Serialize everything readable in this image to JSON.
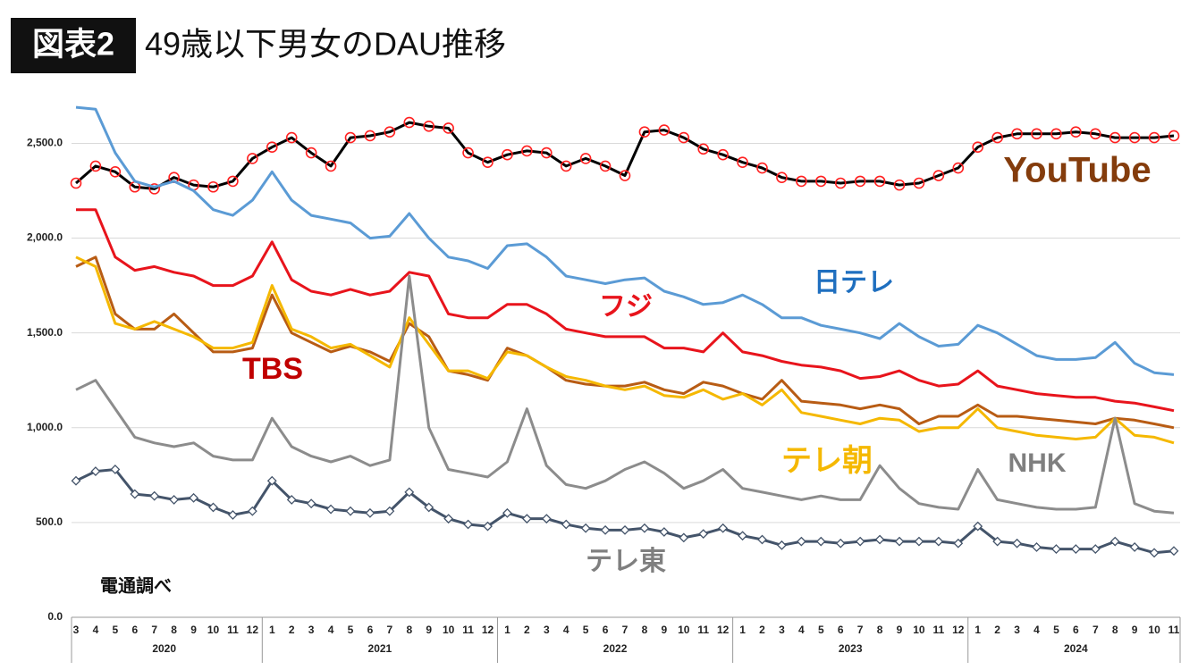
{
  "chart_data": {
    "type": "line",
    "badge": "図表2",
    "title": "49歳以下男女のDAU推移",
    "source": "電通調べ",
    "categories": [
      "3",
      "4",
      "5",
      "6",
      "7",
      "8",
      "9",
      "10",
      "11",
      "12",
      "1",
      "2",
      "3",
      "4",
      "5",
      "6",
      "7",
      "8",
      "9",
      "10",
      "11",
      "12",
      "1",
      "2",
      "3",
      "4",
      "5",
      "6",
      "7",
      "8",
      "9",
      "10",
      "11",
      "12",
      "1",
      "2",
      "3",
      "4",
      "5",
      "6",
      "7",
      "8",
      "9",
      "10",
      "11",
      "12",
      "1",
      "2",
      "3",
      "4",
      "5",
      "6",
      "7",
      "8",
      "9",
      "10",
      "11"
    ],
    "years": [
      "2020",
      "2021",
      "2022",
      "2023",
      "2024"
    ],
    "ylim": [
      0,
      2700
    ],
    "yticks": [
      {
        "value": 0,
        "label": "0.0"
      },
      {
        "value": 500,
        "label": "500.0"
      },
      {
        "value": 1000,
        "label": "1,000.0"
      },
      {
        "value": 1500,
        "label": "1,500.0"
      },
      {
        "value": 2000,
        "label": "2,000.0"
      },
      {
        "value": 2500,
        "label": "2,500.0"
      }
    ],
    "grid": true,
    "series": [
      {
        "name": "YouTube",
        "color": "#000000",
        "label_color": "#843c0c",
        "marker": "circle",
        "marker_color": "#ff2020",
        "values": [
          2290,
          2380,
          2350,
          2270,
          2260,
          2320,
          2280,
          2270,
          2300,
          2420,
          2480,
          2530,
          2450,
          2380,
          2530,
          2540,
          2560,
          2610,
          2590,
          2580,
          2450,
          2400,
          2440,
          2460,
          2450,
          2380,
          2420,
          2380,
          2330,
          2560,
          2570,
          2530,
          2470,
          2440,
          2400,
          2370,
          2320,
          2300,
          2300,
          2290,
          2300,
          2300,
          2280,
          2290,
          2330,
          2370,
          2480,
          2530,
          2550,
          2550,
          2550,
          2560,
          2550,
          2530,
          2530,
          2530,
          2540
        ]
      },
      {
        "name": "日テレ",
        "color": "#5b9bd5",
        "label_color": "#1f6fbf",
        "values": [
          2690,
          2680,
          2450,
          2300,
          2270,
          2300,
          2250,
          2150,
          2120,
          2200,
          2350,
          2200,
          2120,
          2100,
          2080,
          2000,
          2010,
          2130,
          2000,
          1900,
          1880,
          1840,
          1960,
          1970,
          1900,
          1800,
          1780,
          1760,
          1780,
          1790,
          1720,
          1690,
          1650,
          1660,
          1700,
          1650,
          1580,
          1580,
          1540,
          1520,
          1500,
          1470,
          1550,
          1480,
          1430,
          1440,
          1540,
          1500,
          1440,
          1380,
          1360,
          1360,
          1370,
          1450,
          1340,
          1290,
          1280
        ]
      },
      {
        "name": "フジ",
        "color": "#e8141c",
        "label_color": "#e8141c",
        "values": [
          2150,
          2150,
          1900,
          1830,
          1850,
          1820,
          1800,
          1750,
          1750,
          1800,
          1980,
          1780,
          1720,
          1700,
          1730,
          1700,
          1720,
          1820,
          1800,
          1600,
          1580,
          1580,
          1650,
          1650,
          1600,
          1520,
          1500,
          1480,
          1480,
          1480,
          1420,
          1420,
          1400,
          1500,
          1400,
          1380,
          1350,
          1330,
          1320,
          1300,
          1260,
          1270,
          1300,
          1250,
          1220,
          1230,
          1300,
          1220,
          1200,
          1180,
          1170,
          1160,
          1160,
          1140,
          1130,
          1110,
          1090
        ]
      },
      {
        "name": "TBS",
        "color": "#b85c14",
        "label_color": "#c00000",
        "values": [
          1850,
          1900,
          1600,
          1520,
          1520,
          1600,
          1500,
          1400,
          1400,
          1420,
          1700,
          1500,
          1450,
          1400,
          1430,
          1400,
          1350,
          1550,
          1480,
          1300,
          1280,
          1250,
          1420,
          1380,
          1320,
          1250,
          1230,
          1220,
          1220,
          1240,
          1200,
          1180,
          1240,
          1220,
          1180,
          1150,
          1250,
          1140,
          1130,
          1120,
          1100,
          1120,
          1100,
          1020,
          1060,
          1060,
          1120,
          1060,
          1060,
          1050,
          1040,
          1030,
          1020,
          1050,
          1040,
          1020,
          1000
        ]
      },
      {
        "name": "テレ朝",
        "color": "#f5b800",
        "label_color": "#f5b800",
        "values": [
          1900,
          1850,
          1550,
          1520,
          1560,
          1520,
          1480,
          1420,
          1420,
          1450,
          1750,
          1520,
          1480,
          1420,
          1440,
          1380,
          1320,
          1580,
          1440,
          1300,
          1300,
          1260,
          1400,
          1380,
          1320,
          1270,
          1250,
          1220,
          1200,
          1220,
          1170,
          1160,
          1200,
          1150,
          1180,
          1120,
          1200,
          1080,
          1060,
          1040,
          1020,
          1050,
          1040,
          980,
          1000,
          1000,
          1100,
          1000,
          980,
          960,
          950,
          940,
          950,
          1050,
          960,
          950,
          920
        ]
      },
      {
        "name": "NHK",
        "color": "#8c8c8c",
        "label_color": "#7f7f7f",
        "values": [
          1200,
          1250,
          1100,
          950,
          920,
          900,
          920,
          850,
          830,
          830,
          1050,
          900,
          850,
          820,
          850,
          800,
          830,
          1800,
          1000,
          780,
          760,
          740,
          820,
          1100,
          800,
          700,
          680,
          720,
          780,
          820,
          760,
          680,
          720,
          780,
          680,
          660,
          640,
          620,
          640,
          620,
          620,
          800,
          680,
          600,
          580,
          570,
          780,
          620,
          600,
          580,
          570,
          570,
          580,
          1050,
          600,
          560,
          550
        ]
      },
      {
        "name": "テレ東",
        "color": "#44546a",
        "label_color": "#7f7f7f",
        "marker": "diamond",
        "marker_color": "#ffffff",
        "values": [
          720,
          770,
          780,
          650,
          640,
          620,
          630,
          580,
          540,
          560,
          720,
          620,
          600,
          570,
          560,
          550,
          560,
          660,
          580,
          520,
          490,
          480,
          550,
          520,
          520,
          490,
          470,
          460,
          460,
          470,
          450,
          420,
          440,
          470,
          430,
          410,
          380,
          400,
          400,
          390,
          400,
          410,
          400,
          400,
          400,
          390,
          480,
          400,
          390,
          370,
          360,
          360,
          360,
          400,
          370,
          340,
          350
        ]
      }
    ]
  }
}
